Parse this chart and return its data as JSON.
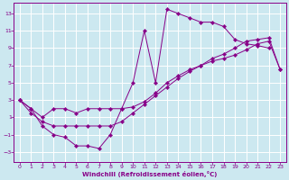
{
  "xlabel": "Windchill (Refroidissement éolien,°C)",
  "background_color": "#cce8f0",
  "grid_color": "#ffffff",
  "line_color": "#880088",
  "xlim": [
    -0.5,
    23.5
  ],
  "ylim": [
    -4.2,
    14.2
  ],
  "xticks": [
    0,
    1,
    2,
    3,
    4,
    5,
    6,
    7,
    8,
    9,
    10,
    11,
    12,
    13,
    14,
    15,
    16,
    17,
    18,
    19,
    20,
    21,
    22,
    23
  ],
  "yticks": [
    -3,
    -1,
    1,
    3,
    5,
    7,
    9,
    11,
    13
  ],
  "series1_x": [
    0,
    1,
    2,
    3,
    4,
    5,
    6,
    7,
    8,
    9,
    10,
    11,
    12,
    13,
    14,
    15,
    16,
    17,
    18,
    19,
    20,
    21,
    22
  ],
  "series1_y": [
    3,
    2,
    0,
    -1,
    -1.3,
    -2.3,
    -2.3,
    -2.6,
    -1,
    2,
    5,
    11,
    5,
    13.5,
    13,
    12.5,
    12,
    12,
    11.5,
    10,
    9.5,
    9.3,
    9
  ],
  "series2_x": [
    0,
    1,
    2,
    3,
    4,
    5,
    6,
    7,
    8,
    9,
    10,
    11,
    12,
    13,
    14,
    15,
    16,
    17,
    18,
    19,
    20,
    21,
    22,
    23
  ],
  "series2_y": [
    3,
    2,
    1,
    2,
    2,
    1.5,
    2,
    2,
    2,
    2,
    2.2,
    2.8,
    3.8,
    5,
    5.8,
    6.5,
    7,
    7.5,
    7.8,
    8.2,
    8.8,
    9.5,
    9.8,
    6.5
  ],
  "series3_x": [
    0,
    1,
    2,
    3,
    4,
    5,
    6,
    7,
    8,
    9,
    10,
    11,
    12,
    13,
    14,
    15,
    16,
    17,
    18,
    19,
    20,
    21,
    22,
    23
  ],
  "series3_y": [
    3,
    1.5,
    0.5,
    0,
    0,
    0,
    0,
    0,
    0,
    0.5,
    1.5,
    2.5,
    3.5,
    4.5,
    5.5,
    6.3,
    7,
    7.8,
    8.3,
    9,
    9.8,
    10,
    10.2,
    6.5
  ]
}
